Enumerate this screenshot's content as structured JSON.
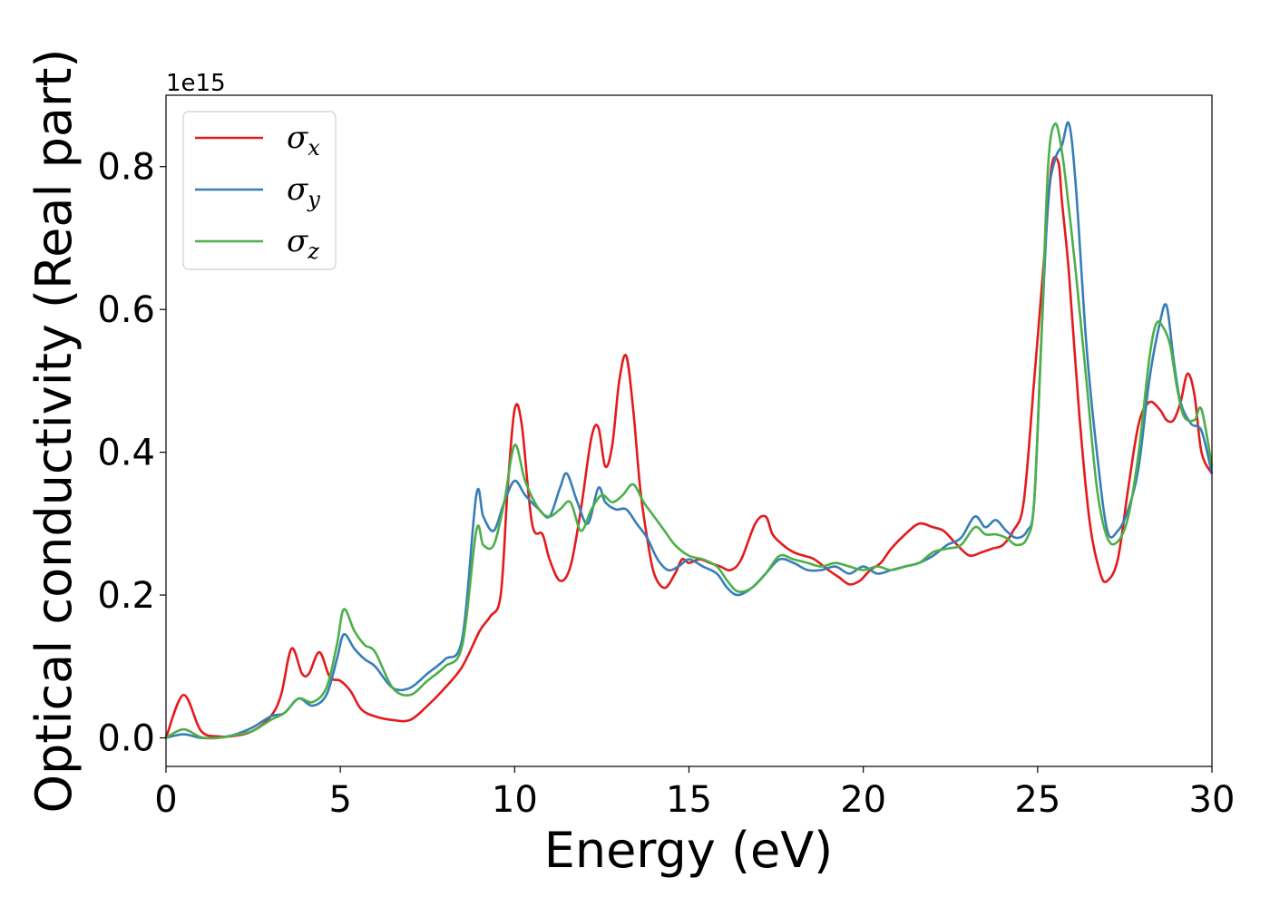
{
  "chart_data": {
    "type": "line",
    "title": "",
    "xlabel": "Energy (eV)",
    "ylabel": "Optical conductivity (Real part)",
    "y_offset_label": "1e15",
    "xlim": [
      0,
      30
    ],
    "ylim": [
      -0.04,
      0.9
    ],
    "xticks": [
      0,
      5,
      10,
      15,
      20,
      25,
      30
    ],
    "yticks": [
      0.0,
      0.2,
      0.4,
      0.6,
      0.8
    ],
    "grid": false,
    "legend_position": "top-left",
    "series": [
      {
        "name": "σx",
        "symbol": "σ",
        "subscript": "x",
        "color": "#e41a1c",
        "x": [
          0,
          0.5,
          1.0,
          1.5,
          2.0,
          2.5,
          3.0,
          3.3,
          3.6,
          3.9,
          4.1,
          4.4,
          4.7,
          5.0,
          5.3,
          5.6,
          6.0,
          6.5,
          7.0,
          7.5,
          8.0,
          8.5,
          9.0,
          9.3,
          9.6,
          9.8,
          10.0,
          10.2,
          10.5,
          10.8,
          11.0,
          11.3,
          11.6,
          11.9,
          12.2,
          12.4,
          12.6,
          12.8,
          13.0,
          13.2,
          13.4,
          13.6,
          13.8,
          14.0,
          14.3,
          14.6,
          14.8,
          15.0,
          15.3,
          15.6,
          15.9,
          16.2,
          16.5,
          16.9,
          17.2,
          17.4,
          17.7,
          18.0,
          18.3,
          18.6,
          19.0,
          19.3,
          19.6,
          19.9,
          20.2,
          20.5,
          20.8,
          21.2,
          21.6,
          22.0,
          22.3,
          22.6,
          22.9,
          23.1,
          23.4,
          23.7,
          24.0,
          24.3,
          24.6,
          24.9,
          25.2,
          25.4,
          25.6,
          25.7,
          25.9,
          26.2,
          26.5,
          26.8,
          27.0,
          27.3,
          27.6,
          27.9,
          28.2,
          28.5,
          28.7,
          28.9,
          29.1,
          29.3,
          29.5,
          29.7,
          30.0
        ],
        "y": [
          0.0,
          0.06,
          0.01,
          0.002,
          0.003,
          0.01,
          0.03,
          0.06,
          0.125,
          0.09,
          0.09,
          0.12,
          0.085,
          0.08,
          0.065,
          0.04,
          0.03,
          0.025,
          0.025,
          0.045,
          0.07,
          0.1,
          0.15,
          0.17,
          0.2,
          0.35,
          0.46,
          0.44,
          0.3,
          0.285,
          0.25,
          0.22,
          0.24,
          0.32,
          0.42,
          0.435,
          0.38,
          0.41,
          0.5,
          0.535,
          0.46,
          0.35,
          0.28,
          0.23,
          0.21,
          0.23,
          0.25,
          0.245,
          0.25,
          0.245,
          0.24,
          0.235,
          0.25,
          0.3,
          0.31,
          0.285,
          0.27,
          0.26,
          0.255,
          0.25,
          0.235,
          0.225,
          0.215,
          0.22,
          0.235,
          0.245,
          0.265,
          0.285,
          0.3,
          0.295,
          0.29,
          0.275,
          0.26,
          0.255,
          0.26,
          0.265,
          0.27,
          0.29,
          0.33,
          0.5,
          0.68,
          0.8,
          0.805,
          0.75,
          0.65,
          0.45,
          0.3,
          0.23,
          0.22,
          0.25,
          0.35,
          0.44,
          0.47,
          0.46,
          0.445,
          0.445,
          0.47,
          0.51,
          0.48,
          0.4,
          0.37
        ]
      },
      {
        "name": "σy",
        "symbol": "σ",
        "subscript": "y",
        "color": "#377eb8",
        "x": [
          0,
          0.5,
          1.0,
          1.5,
          2.0,
          2.5,
          3.0,
          3.4,
          3.8,
          4.2,
          4.6,
          4.9,
          5.1,
          5.4,
          5.7,
          6.0,
          6.5,
          7.0,
          7.5,
          8.0,
          8.5,
          8.9,
          9.1,
          9.4,
          9.7,
          10.0,
          10.3,
          10.7,
          11.0,
          11.3,
          11.5,
          11.8,
          12.1,
          12.4,
          12.6,
          12.9,
          13.2,
          13.5,
          13.8,
          14.1,
          14.4,
          14.7,
          15.0,
          15.4,
          15.8,
          16.1,
          16.4,
          16.8,
          17.2,
          17.6,
          18.0,
          18.4,
          18.8,
          19.2,
          19.6,
          20.0,
          20.4,
          20.8,
          21.2,
          21.6,
          22.0,
          22.4,
          22.8,
          23.2,
          23.5,
          23.8,
          24.1,
          24.4,
          24.7,
          24.9,
          25.1,
          25.3,
          25.5,
          25.7,
          25.9,
          26.1,
          26.4,
          26.7,
          27.0,
          27.3,
          27.6,
          27.9,
          28.2,
          28.5,
          28.7,
          28.9,
          29.1,
          29.4,
          29.7,
          30.0
        ],
        "y": [
          0.0,
          0.005,
          0.0,
          0.0,
          0.005,
          0.015,
          0.03,
          0.035,
          0.055,
          0.045,
          0.06,
          0.11,
          0.145,
          0.125,
          0.11,
          0.1,
          0.07,
          0.07,
          0.09,
          0.11,
          0.14,
          0.34,
          0.31,
          0.29,
          0.33,
          0.36,
          0.34,
          0.32,
          0.31,
          0.35,
          0.37,
          0.33,
          0.3,
          0.35,
          0.33,
          0.32,
          0.32,
          0.3,
          0.28,
          0.25,
          0.235,
          0.24,
          0.25,
          0.24,
          0.23,
          0.21,
          0.2,
          0.21,
          0.23,
          0.25,
          0.245,
          0.235,
          0.235,
          0.24,
          0.23,
          0.24,
          0.23,
          0.235,
          0.24,
          0.245,
          0.255,
          0.27,
          0.28,
          0.31,
          0.295,
          0.305,
          0.29,
          0.28,
          0.29,
          0.33,
          0.55,
          0.75,
          0.81,
          0.83,
          0.86,
          0.77,
          0.55,
          0.4,
          0.29,
          0.29,
          0.32,
          0.38,
          0.5,
          0.58,
          0.605,
          0.53,
          0.47,
          0.44,
          0.43,
          0.37
        ]
      },
      {
        "name": "σz",
        "symbol": "σ",
        "subscript": "z",
        "color": "#4daf4a",
        "x": [
          0,
          0.5,
          1.0,
          1.5,
          2.0,
          2.5,
          3.0,
          3.4,
          3.8,
          4.2,
          4.6,
          4.9,
          5.1,
          5.4,
          5.7,
          6.0,
          6.5,
          7.0,
          7.5,
          8.0,
          8.5,
          8.9,
          9.1,
          9.4,
          9.7,
          10.0,
          10.3,
          10.7,
          11.0,
          11.3,
          11.6,
          11.9,
          12.2,
          12.5,
          12.8,
          13.1,
          13.4,
          13.7,
          14.0,
          14.3,
          14.6,
          15.0,
          15.4,
          15.8,
          16.1,
          16.4,
          16.8,
          17.2,
          17.6,
          18.0,
          18.4,
          18.8,
          19.2,
          19.6,
          20.0,
          20.4,
          20.8,
          21.2,
          21.6,
          22.0,
          22.4,
          22.8,
          23.2,
          23.5,
          23.8,
          24.1,
          24.4,
          24.7,
          24.9,
          25.1,
          25.3,
          25.5,
          25.7,
          25.9,
          26.1,
          26.4,
          26.7,
          27.0,
          27.3,
          27.6,
          27.9,
          28.2,
          28.4,
          28.6,
          28.8,
          29.0,
          29.2,
          29.5,
          29.7,
          30.0
        ],
        "y": [
          0.0,
          0.012,
          0.001,
          0.0,
          0.004,
          0.01,
          0.025,
          0.035,
          0.055,
          0.05,
          0.07,
          0.13,
          0.18,
          0.15,
          0.13,
          0.12,
          0.07,
          0.06,
          0.08,
          0.1,
          0.13,
          0.29,
          0.27,
          0.27,
          0.33,
          0.41,
          0.36,
          0.32,
          0.31,
          0.32,
          0.33,
          0.29,
          0.32,
          0.34,
          0.33,
          0.34,
          0.355,
          0.33,
          0.31,
          0.29,
          0.27,
          0.255,
          0.25,
          0.24,
          0.22,
          0.205,
          0.21,
          0.23,
          0.255,
          0.25,
          0.245,
          0.24,
          0.245,
          0.24,
          0.235,
          0.24,
          0.235,
          0.24,
          0.245,
          0.26,
          0.265,
          0.27,
          0.295,
          0.285,
          0.285,
          0.28,
          0.27,
          0.28,
          0.33,
          0.55,
          0.8,
          0.86,
          0.82,
          0.74,
          0.65,
          0.5,
          0.35,
          0.28,
          0.275,
          0.31,
          0.4,
          0.53,
          0.58,
          0.575,
          0.55,
          0.49,
          0.45,
          0.445,
          0.46,
          0.38
        ]
      }
    ]
  }
}
